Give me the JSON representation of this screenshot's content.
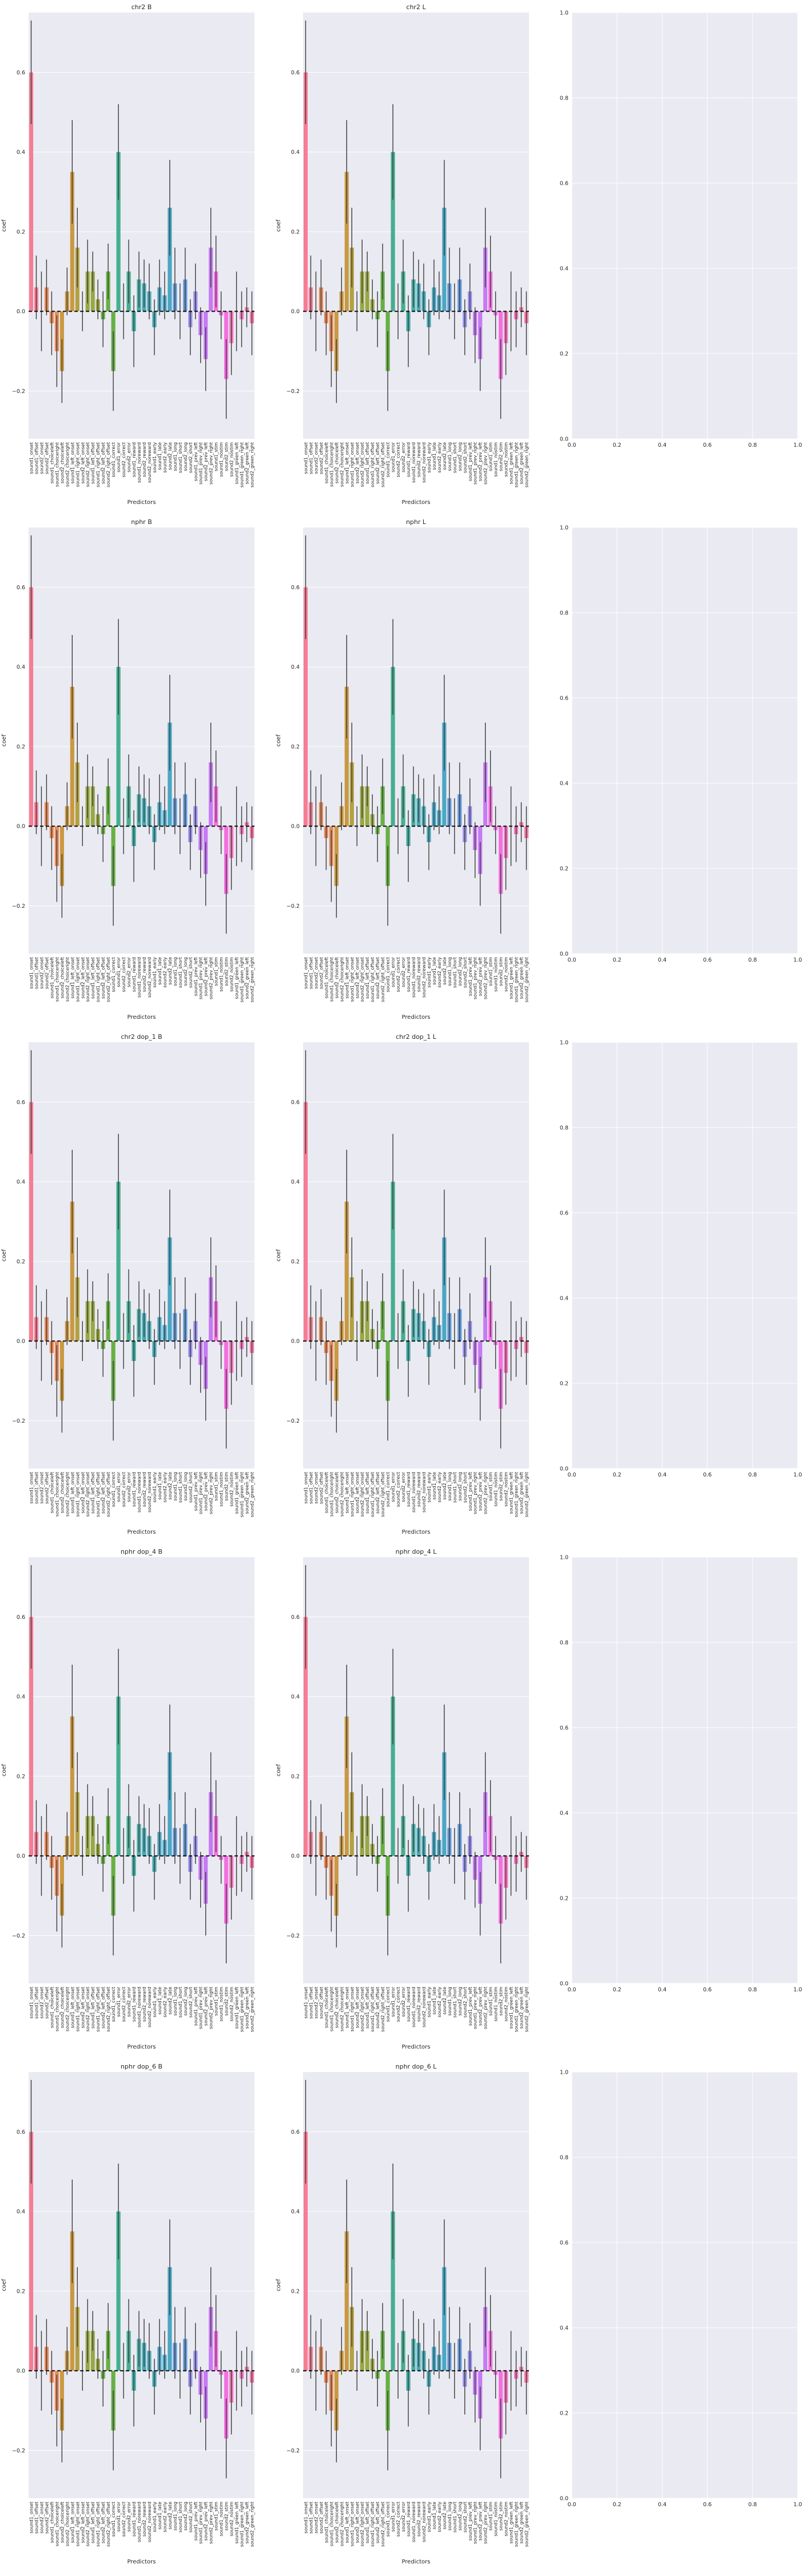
{
  "style": {
    "facecolor": "#eaeaf2",
    "gridcolor": "#ffffff",
    "palette": [
      "#f77189",
      "#e88048",
      "#c5902f",
      "#ab992f",
      "#8fa131",
      "#5aaa32",
      "#33a884",
      "#35a59b",
      "#37a2ad",
      "#3aa0be",
      "#5592d8",
      "#8e86ea",
      "#c26ef3",
      "#f364de",
      "#f56cb7",
      "#f66f9e"
    ]
  },
  "panels": [
    {
      "title": "chr2 B",
      "kind": "bars"
    },
    {
      "title": "chr2 L",
      "kind": "bars"
    },
    {
      "title": "",
      "kind": "empty"
    },
    {
      "title": "nphr B",
      "kind": "bars"
    },
    {
      "title": "nphr L",
      "kind": "bars"
    },
    {
      "title": "",
      "kind": "empty"
    },
    {
      "title": "chr2 dop_1 B",
      "kind": "bars"
    },
    {
      "title": "chr2 dop_1 L",
      "kind": "bars"
    },
    {
      "title": "",
      "kind": "empty"
    },
    {
      "title": "nphr dop_4 B",
      "kind": "bars"
    },
    {
      "title": "nphr dop_4 L",
      "kind": "bars"
    },
    {
      "title": "",
      "kind": "empty"
    },
    {
      "title": "nphr dop_6 B",
      "kind": "bars"
    },
    {
      "title": "nphr dop_6 L",
      "kind": "bars"
    },
    {
      "title": "",
      "kind": "empty"
    }
  ],
  "chart_data": {
    "type": "bar",
    "xlabel": "Predictors",
    "ylabel": "coef",
    "ylim": [
      -0.32,
      0.75
    ],
    "yticks": [
      -0.2,
      0.0,
      0.2,
      0.4,
      0.6
    ],
    "ytick_labels": [
      "−0.2",
      "0.0",
      "0.2",
      "0.4",
      "0.6"
    ],
    "empty_axes": {
      "xlim": [
        0,
        1
      ],
      "ylim": [
        0,
        1
      ],
      "xticks": [
        "0.0",
        "0.2",
        "0.4",
        "0.6",
        "0.8",
        "1.0"
      ],
      "yticks": [
        "0.0",
        "0.2",
        "0.4",
        "0.6",
        "0.8",
        "1.0"
      ]
    },
    "categories": [
      "sound1_onset",
      "sound1_offset",
      "sound2_onset",
      "sound2_offset",
      "sound1_choiceleft",
      "sound1_choiceright",
      "sound2_choiceleft",
      "sound2_choiceright",
      "sound1_left_onset",
      "sound1_right_onset",
      "sound2_left_onset",
      "sound2_right_onset",
      "sound1_left_offset",
      "sound1_right_offset",
      "sound2_left_offset",
      "sound2_right_offset",
      "sound1_correct",
      "sound1_error",
      "sound2_correct",
      "sound2_error",
      "sound1_reward",
      "sound1_noreward",
      "sound2_reward",
      "sound2_noreward",
      "sound1_early",
      "sound1_late",
      "sound2_early",
      "sound2_late",
      "sound1_long",
      "sound1_short",
      "sound2_long",
      "sound2_short",
      "sound1_prev_left",
      "sound1_prev_right",
      "sound2_prev_left",
      "sound2_prev_right",
      "sound1_stim",
      "sound1_nostim",
      "sound2_stim",
      "sound2_nostim",
      "sound1_green_left",
      "sound1_green_right",
      "sound2_green_left",
      "sound2_green_right"
    ],
    "values": [
      0.6,
      0.06,
      0.0,
      0.06,
      -0.03,
      -0.1,
      -0.15,
      0.05,
      0.35,
      0.16,
      0.0,
      0.1,
      0.1,
      0.03,
      -0.02,
      0.1,
      -0.15,
      0.4,
      0.0,
      0.1,
      -0.05,
      0.08,
      0.07,
      0.05,
      -0.04,
      0.06,
      0.04,
      0.26,
      0.07,
      0.0,
      0.08,
      -0.04,
      0.05,
      -0.06,
      -0.12,
      0.16,
      0.1,
      -0.01,
      -0.17,
      -0.08,
      0.0,
      -0.02,
      0.01,
      -0.03
    ],
    "errors": [
      0.13,
      0.08,
      0.1,
      0.07,
      0.08,
      0.09,
      0.08,
      0.06,
      0.13,
      0.1,
      0.05,
      0.08,
      0.05,
      0.05,
      0.07,
      0.07,
      0.1,
      0.12,
      0.07,
      0.08,
      0.09,
      0.07,
      0.06,
      0.07,
      0.07,
      0.07,
      0.06,
      0.12,
      0.09,
      0.07,
      0.08,
      0.07,
      0.07,
      0.07,
      0.08,
      0.1,
      0.09,
      0.06,
      0.1,
      0.08,
      0.1,
      0.07,
      0.05,
      0.08
    ]
  }
}
